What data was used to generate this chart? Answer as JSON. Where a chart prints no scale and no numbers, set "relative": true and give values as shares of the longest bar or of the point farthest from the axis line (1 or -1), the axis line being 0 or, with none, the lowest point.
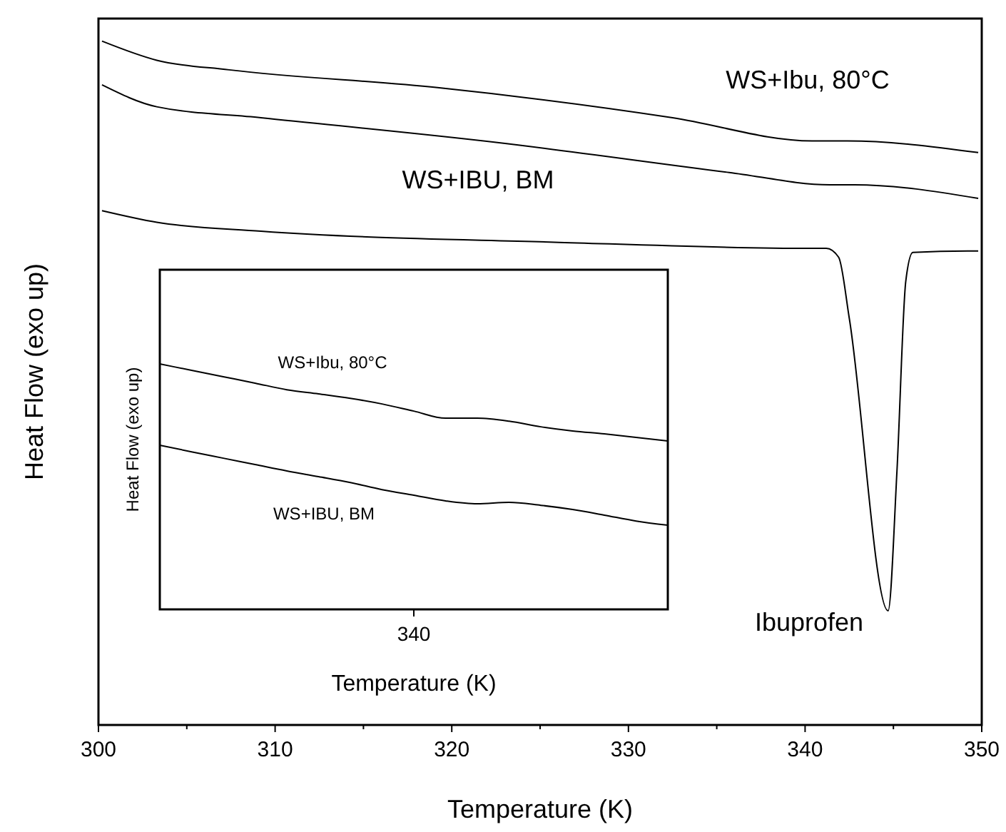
{
  "chart_data": [
    {
      "type": "line",
      "relative": true,
      "xlabel": "Temperature (K)",
      "ylabel": "Heat Flow (exo up)",
      "xlim": [
        300,
        350
      ],
      "xticks": [
        300,
        {
          "value": 305,
          "label": null
        },
        310,
        {
          "value": 315,
          "label": null
        },
        320,
        {
          "value": 325,
          "label": null
        },
        330,
        {
          "value": 335,
          "label": null
        },
        340,
        {
          "value": 345,
          "label": null
        },
        350
      ],
      "series": [
        {
          "name": "WS+Ibu, 80°C",
          "color": "#000000",
          "x": [
            300.2,
            303.3,
            307.4,
            319.2,
            332.5,
            340.4,
            341.2,
            342.4,
            349.8
          ],
          "values": [
            1.0,
            0.972,
            0.958,
            0.932,
            0.888,
            0.854,
            0.854,
            0.854,
            0.837
          ]
        },
        {
          "name": "WS+IBU, BM",
          "color": "#000000",
          "x": [
            300.2,
            303.3,
            309.2,
            322.5,
            335.7,
            341.4,
            342.8,
            349.8
          ],
          "values": [
            0.936,
            0.904,
            0.888,
            0.852,
            0.808,
            0.79,
            0.79,
            0.77
          ]
        },
        {
          "name": "Ibuprofen",
          "color": "#000000",
          "x": [
            300.2,
            303.3,
            309.2,
            325.8,
            340.4,
            341.2,
            341.9,
            342.5,
            344.7,
            345.2,
            345.7,
            346.1,
            349.2,
            349.8
          ],
          "values": [
            0.752,
            0.735,
            0.722,
            0.706,
            0.697,
            0.697,
            0.684,
            0.595,
            0.167,
            0.371,
            0.649,
            0.691,
            0.693,
            0.693
          ]
        }
      ]
    },
    {
      "type": "line",
      "relative": true,
      "xlabel": "Temperature (K)",
      "ylabel": "Heat Flow (exo up)",
      "annotations": [
        "340"
      ],
      "categories": [
        null,
        null,
        null,
        null,
        null,
        null,
        null,
        null,
        null,
        null,
        null,
        null,
        null,
        null,
        null,
        null,
        null
      ],
      "series": [
        {
          "name": "WS+Ibu, 80°C",
          "color": "#000000",
          "values": [
            1.0,
            0.974,
            0.948,
            0.922,
            0.895,
            0.878,
            0.86,
            0.837,
            0.808,
            0.779,
            0.779,
            0.767,
            0.744,
            0.727,
            0.715,
            0.701,
            0.686
          ]
        },
        {
          "name": "WS+IBU, BM",
          "color": "#000000",
          "values": [
            0.669,
            0.642,
            0.616,
            0.59,
            0.564,
            0.541,
            0.517,
            0.488,
            0.465,
            0.442,
            0.43,
            0.436,
            0.424,
            0.407,
            0.384,
            0.36,
            0.343
          ]
        }
      ]
    }
  ]
}
